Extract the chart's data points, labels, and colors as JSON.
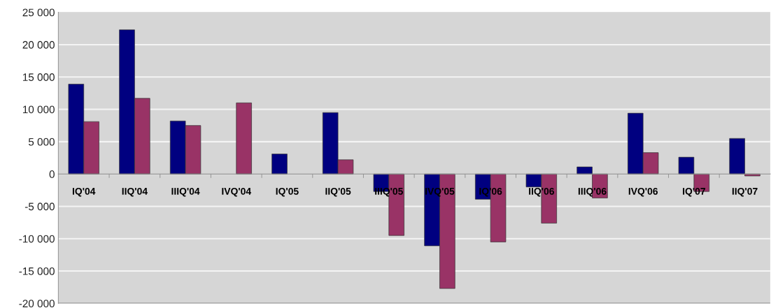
{
  "chart_data": {
    "type": "bar",
    "categories": [
      "IQ'04",
      "IIQ'04",
      "IIIQ'04",
      "IVQ'04",
      "IQ'05",
      "IIQ'05",
      "IIIQ'05",
      "IVQ'05",
      "IQ'06",
      "IIQ'06",
      "IIIQ'06",
      "IVQ'06",
      "IQ'07",
      "IIQ'07"
    ],
    "series": [
      {
        "color": "#000080",
        "values": [
          13900,
          22300,
          8200,
          null,
          3100,
          9500,
          -2700,
          -11100,
          -3900,
          -2000,
          1100,
          9400,
          2600,
          5500
        ]
      },
      {
        "color": "#993366",
        "values": [
          8100,
          11700,
          7500,
          11000,
          null,
          2200,
          -9500,
          -17700,
          -10500,
          -7600,
          -3700,
          3300,
          -2700,
          -300
        ]
      }
    ],
    "ylim": [
      -20000,
      25000
    ],
    "yticks": [
      {
        "value": -20000,
        "label": "-20 000"
      },
      {
        "value": -15000,
        "label": "-15 000"
      },
      {
        "value": -10000,
        "label": "-10 000"
      },
      {
        "value": -5000,
        "label": "-5 000"
      },
      0,
      {
        "value": 5000,
        "label": "5 000"
      },
      {
        "value": 10000,
        "label": "10 000"
      },
      {
        "value": 15000,
        "label": "15 000"
      },
      {
        "value": 20000,
        "label": "20 000"
      },
      {
        "value": 25000,
        "label": "25 000"
      }
    ],
    "grid": "y"
  }
}
